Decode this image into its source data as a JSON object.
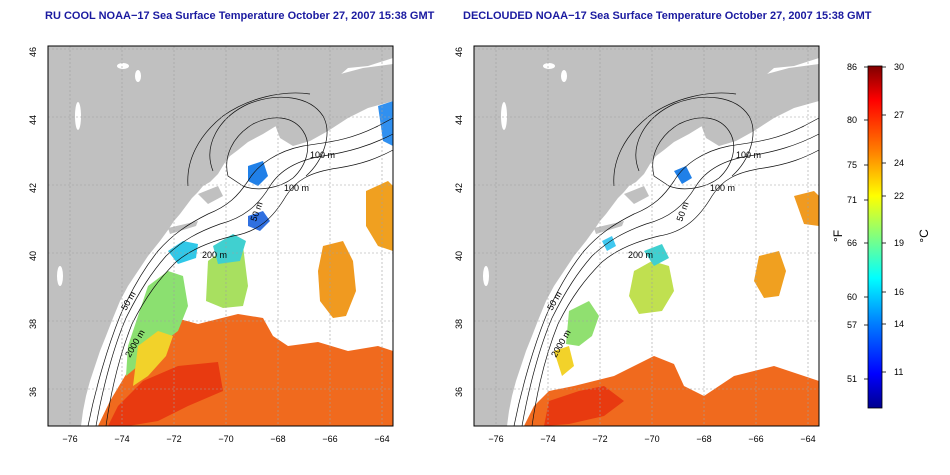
{
  "colors": {
    "land": "#c0c0c0",
    "ocean_nodata": "#ffffff",
    "contour": "#111111",
    "title": "#1a1aa0",
    "grid": "#a0a0a0"
  },
  "panels": [
    {
      "id": "left",
      "title": "RU COOL NOAA−17 Sea Surface Temperature October 27, 2007 15:38 GMT",
      "contour_labels": [
        "100 m",
        "100 m",
        "50 m",
        "200 m",
        "50 m",
        "2000 m"
      ]
    },
    {
      "id": "right",
      "title": "DECLOUDED NOAA−17 Sea Surface Temperature October 27, 2007 15:38 GMT",
      "contour_labels": [
        "100 m",
        "100 m",
        "50 m",
        "200 m",
        "50 m",
        "2000 m"
      ]
    }
  ],
  "map_axes": {
    "lon_ticks": [
      "−76",
      "−74",
      "−72",
      "−70",
      "−68",
      "−66",
      "−64"
    ],
    "lat_ticks": [
      "36",
      "38",
      "40",
      "42",
      "44",
      "46"
    ]
  },
  "colorbar": {
    "left_label": "°F",
    "right_label": "°C",
    "f_ticks": [
      "86",
      "80",
      "75",
      "71",
      "66",
      "60",
      "57",
      "51"
    ],
    "c_ticks": [
      "30",
      "27",
      "24",
      "22",
      "19",
      "16",
      "14",
      "11"
    ],
    "gradient": [
      "#00008f",
      "#0000ff",
      "#0080ff",
      "#00ffff",
      "#80ff80",
      "#ffff00",
      "#ff8000",
      "#ff0000",
      "#800000"
    ]
  }
}
